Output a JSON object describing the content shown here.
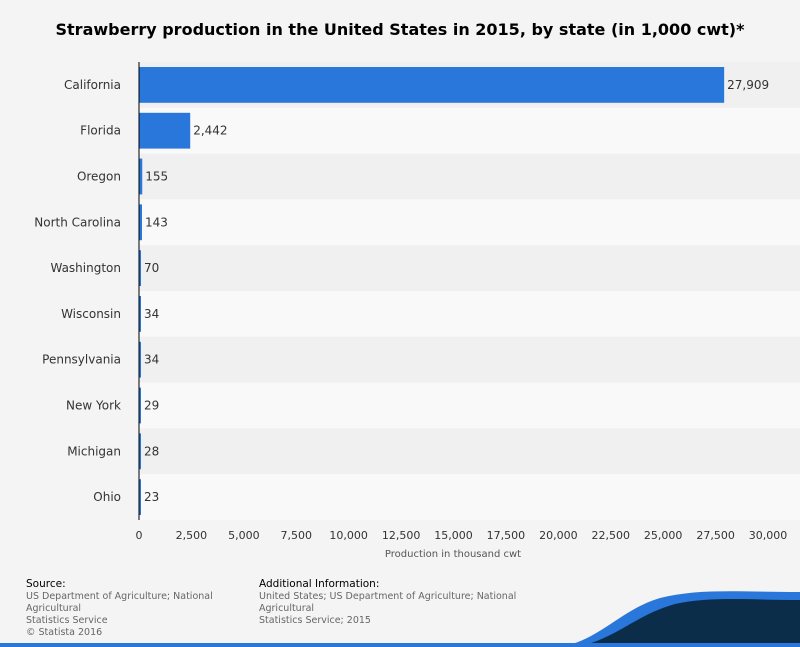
{
  "chart_data": {
    "type": "bar",
    "orientation": "horizontal",
    "title": "Strawberry production in the United States in 2015, by state (in 1,000 cwt)*",
    "categories": [
      "California",
      "Florida",
      "Oregon",
      "North Carolina",
      "Washington",
      "Wisconsin",
      "Pennsylvania",
      "New York",
      "Michigan",
      "Ohio"
    ],
    "values": [
      27909,
      2442,
      155,
      143,
      70,
      34,
      34,
      29,
      28,
      23
    ],
    "value_labels": [
      "27,909",
      "2,442",
      "155",
      "143",
      "70",
      "34",
      "34",
      "29",
      "28",
      "23"
    ],
    "xlabel": "Production in thousand cwt",
    "ylabel": "",
    "xlim": [
      0,
      30000
    ],
    "ticks": [
      0,
      2500,
      5000,
      7500,
      10000,
      12500,
      15000,
      17500,
      20000,
      22500,
      25000,
      27500,
      30000
    ],
    "tick_labels": [
      "0",
      "2,500",
      "5,000",
      "7,500",
      "10,000",
      "12,500",
      "15,000",
      "17,500",
      "20,000",
      "22,500",
      "25,000",
      "27,500",
      "30,000"
    ],
    "bar_color": "#2a77db",
    "grid": false
  },
  "footer": {
    "source_header": "Source:",
    "source_line1": "US Department of Agriculture; National Agricultural",
    "source_line2": "Statistics Service",
    "source_line3": "© Statista 2016",
    "addinfo_header": "Additional Information:",
    "addinfo_line1": "United States; US Department of Agriculture; National Agricultural",
    "addinfo_line2": "Statistics Service; 2015"
  },
  "colors": {
    "wave_dark": "#0c2d4a",
    "wave_light": "#2a77db",
    "band_light": "#f9f9f9",
    "band_dark": "#f0f0f0"
  }
}
